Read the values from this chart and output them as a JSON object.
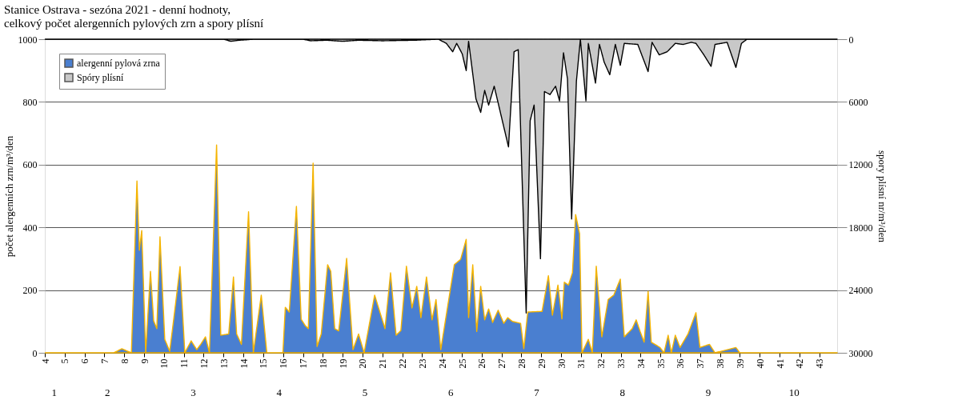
{
  "chart_data": {
    "type": "area",
    "title": "Stanice Ostrava - sezóna 2021 - denní hodnoty,\ncelkový počet alergenních pylových zrn a spory plísní",
    "ylabel": "počet alergenních zrn/m³/den",
    "y2label": "spory plísní nr/m³/den",
    "xlim": [
      4,
      43.9
    ],
    "xticks": [
      4,
      5,
      6,
      7,
      8,
      9,
      10,
      11,
      12,
      13,
      14,
      15,
      16,
      17,
      18,
      19,
      20,
      21,
      22,
      23,
      24,
      25,
      26,
      27,
      28,
      29,
      30,
      31,
      32,
      33,
      34,
      35,
      36,
      37,
      38,
      39,
      40,
      41,
      42,
      43
    ],
    "x2lim": [
      1.27,
      10.5
    ],
    "x2ticks": [
      {
        "value": 1.38,
        "label": "1"
      },
      {
        "value": 2,
        "label": "2"
      },
      {
        "value": 3,
        "label": "3"
      },
      {
        "value": 4,
        "label": "4"
      },
      {
        "value": 5,
        "label": "5"
      },
      {
        "value": 6,
        "label": "6"
      },
      {
        "value": 7,
        "label": "7"
      },
      {
        "value": 8,
        "label": "8"
      },
      {
        "value": 9,
        "label": "9"
      },
      {
        "value": 10,
        "label": "10"
      }
    ],
    "ylim": [
      0,
      1000
    ],
    "yticks": [
      0,
      200,
      400,
      600,
      800,
      1000
    ],
    "y2lim": [
      30000,
      0
    ],
    "y2ticks": [
      0,
      6000,
      12000,
      18000,
      24000,
      30000
    ],
    "grid": "y",
    "legend": "top left",
    "series": [
      {
        "name": "alergenní pylová zrna",
        "color": "#4a7fd0",
        "x": [
          4.02,
          7.47,
          7.88,
          8.36,
          8.64,
          8.76,
          8.88,
          9.08,
          9.32,
          9.48,
          9.64,
          9.8,
          10.04,
          10.29,
          10.49,
          10.81,
          11.05,
          11.37,
          11.65,
          11.85,
          12.09,
          12.29,
          12.65,
          12.86,
          13.26,
          13.5,
          13.66,
          13.9,
          14.26,
          14.5,
          14.9,
          15.18,
          15.99,
          16.11,
          16.31,
          16.67,
          16.91,
          17.11,
          17.27,
          17.51,
          17.71,
          17.92,
          18.24,
          18.4,
          18.6,
          18.8,
          19.2,
          19.52,
          19.8,
          20.08,
          20.61,
          21.13,
          21.41,
          21.69,
          21.93,
          22.21,
          22.49,
          22.73,
          22.94,
          23.22,
          23.5,
          23.7,
          23.94,
          24.62,
          24.94,
          25.22,
          25.34,
          25.55,
          25.75,
          25.95,
          26.15,
          26.35,
          26.55,
          26.83,
          27.11,
          27.31,
          27.55,
          27.96,
          28.12,
          28.32,
          29.04,
          29.36,
          29.56,
          29.84,
          30.04,
          30.16,
          30.37,
          30.57,
          30.73,
          30.93,
          31.05,
          31.37,
          31.57,
          31.77,
          32.05,
          32.37,
          32.65,
          32.98,
          33.18,
          33.58,
          33.78,
          33.98,
          34.18,
          34.38,
          34.54,
          34.98,
          35.18,
          35.39,
          35.55,
          35.75,
          35.99,
          36.39,
          36.79,
          36.99,
          37.47,
          37.75,
          38.8,
          39.0,
          43.9
        ],
        "values": [
          0,
          0,
          13,
          0,
          548,
          327,
          390,
          0,
          260,
          102,
          77,
          370,
          43,
          5,
          107,
          275,
          0,
          38,
          10,
          27,
          51,
          0,
          663,
          56,
          60,
          242,
          60,
          27,
          450,
          0,
          184,
          0,
          0,
          145,
          130,
          467,
          107,
          87,
          77,
          605,
          20,
          60,
          281,
          260,
          77,
          70,
          301,
          10,
          60,
          0,
          184,
          77,
          255,
          56,
          71,
          276,
          143,
          212,
          112,
          242,
          105,
          170,
          10,
          281,
          298,
          362,
          112,
          281,
          68,
          212,
          105,
          140,
          97,
          136,
          94,
          112,
          100,
          94,
          13,
          130,
          132,
          246,
          120,
          216,
          108,
          225,
          216,
          255,
          441,
          380,
          0,
          43,
          0,
          276,
          51,
          170,
          184,
          235,
          51,
          77,
          105,
          68,
          34,
          196,
          34,
          17,
          0,
          56,
          0,
          56,
          17,
          60,
          128,
          17,
          27,
          0,
          17,
          0,
          0
        ]
      },
      {
        "name": "Spóry plísní",
        "color": "#c8c8c8",
        "axis": "y2",
        "x": [
          4.02,
          12.98,
          13.38,
          13.78,
          14.58,
          16.99,
          17.39,
          18.2,
          19.0,
          19.8,
          21.01,
          22.61,
          23.82,
          24.22,
          24.54,
          24.74,
          25.02,
          25.22,
          25.34,
          25.71,
          25.95,
          26.15,
          26.35,
          26.63,
          27.35,
          27.63,
          27.84,
          28.24,
          28.44,
          28.64,
          28.96,
          29.16,
          29.44,
          29.72,
          29.92,
          30.12,
          30.32,
          30.53,
          30.77,
          30.97,
          31.25,
          31.37,
          31.73,
          31.93,
          32.17,
          32.45,
          32.73,
          32.98,
          33.18,
          33.86,
          34.38,
          34.58,
          34.94,
          35.34,
          35.75,
          36.15,
          36.55,
          36.79,
          37.19,
          37.55,
          37.75,
          38.36,
          38.8,
          39.08,
          39.36,
          43.9
        ],
        "values": [
          0,
          0,
          200,
          100,
          0,
          0,
          150,
          100,
          200,
          100,
          150,
          100,
          0,
          400,
          1200,
          400,
          1400,
          3000,
          200,
          5700,
          7000,
          4900,
          6300,
          4500,
          10300,
          1200,
          1000,
          26200,
          7800,
          6300,
          21000,
          5000,
          5300,
          4500,
          5900,
          1300,
          3800,
          17200,
          4000,
          0,
          5900,
          400,
          4200,
          500,
          2200,
          3400,
          500,
          2500,
          400,
          500,
          3100,
          300,
          1500,
          1200,
          400,
          500,
          300,
          400,
          1500,
          2600,
          500,
          300,
          2700,
          400,
          0,
          0
        ]
      }
    ]
  }
}
